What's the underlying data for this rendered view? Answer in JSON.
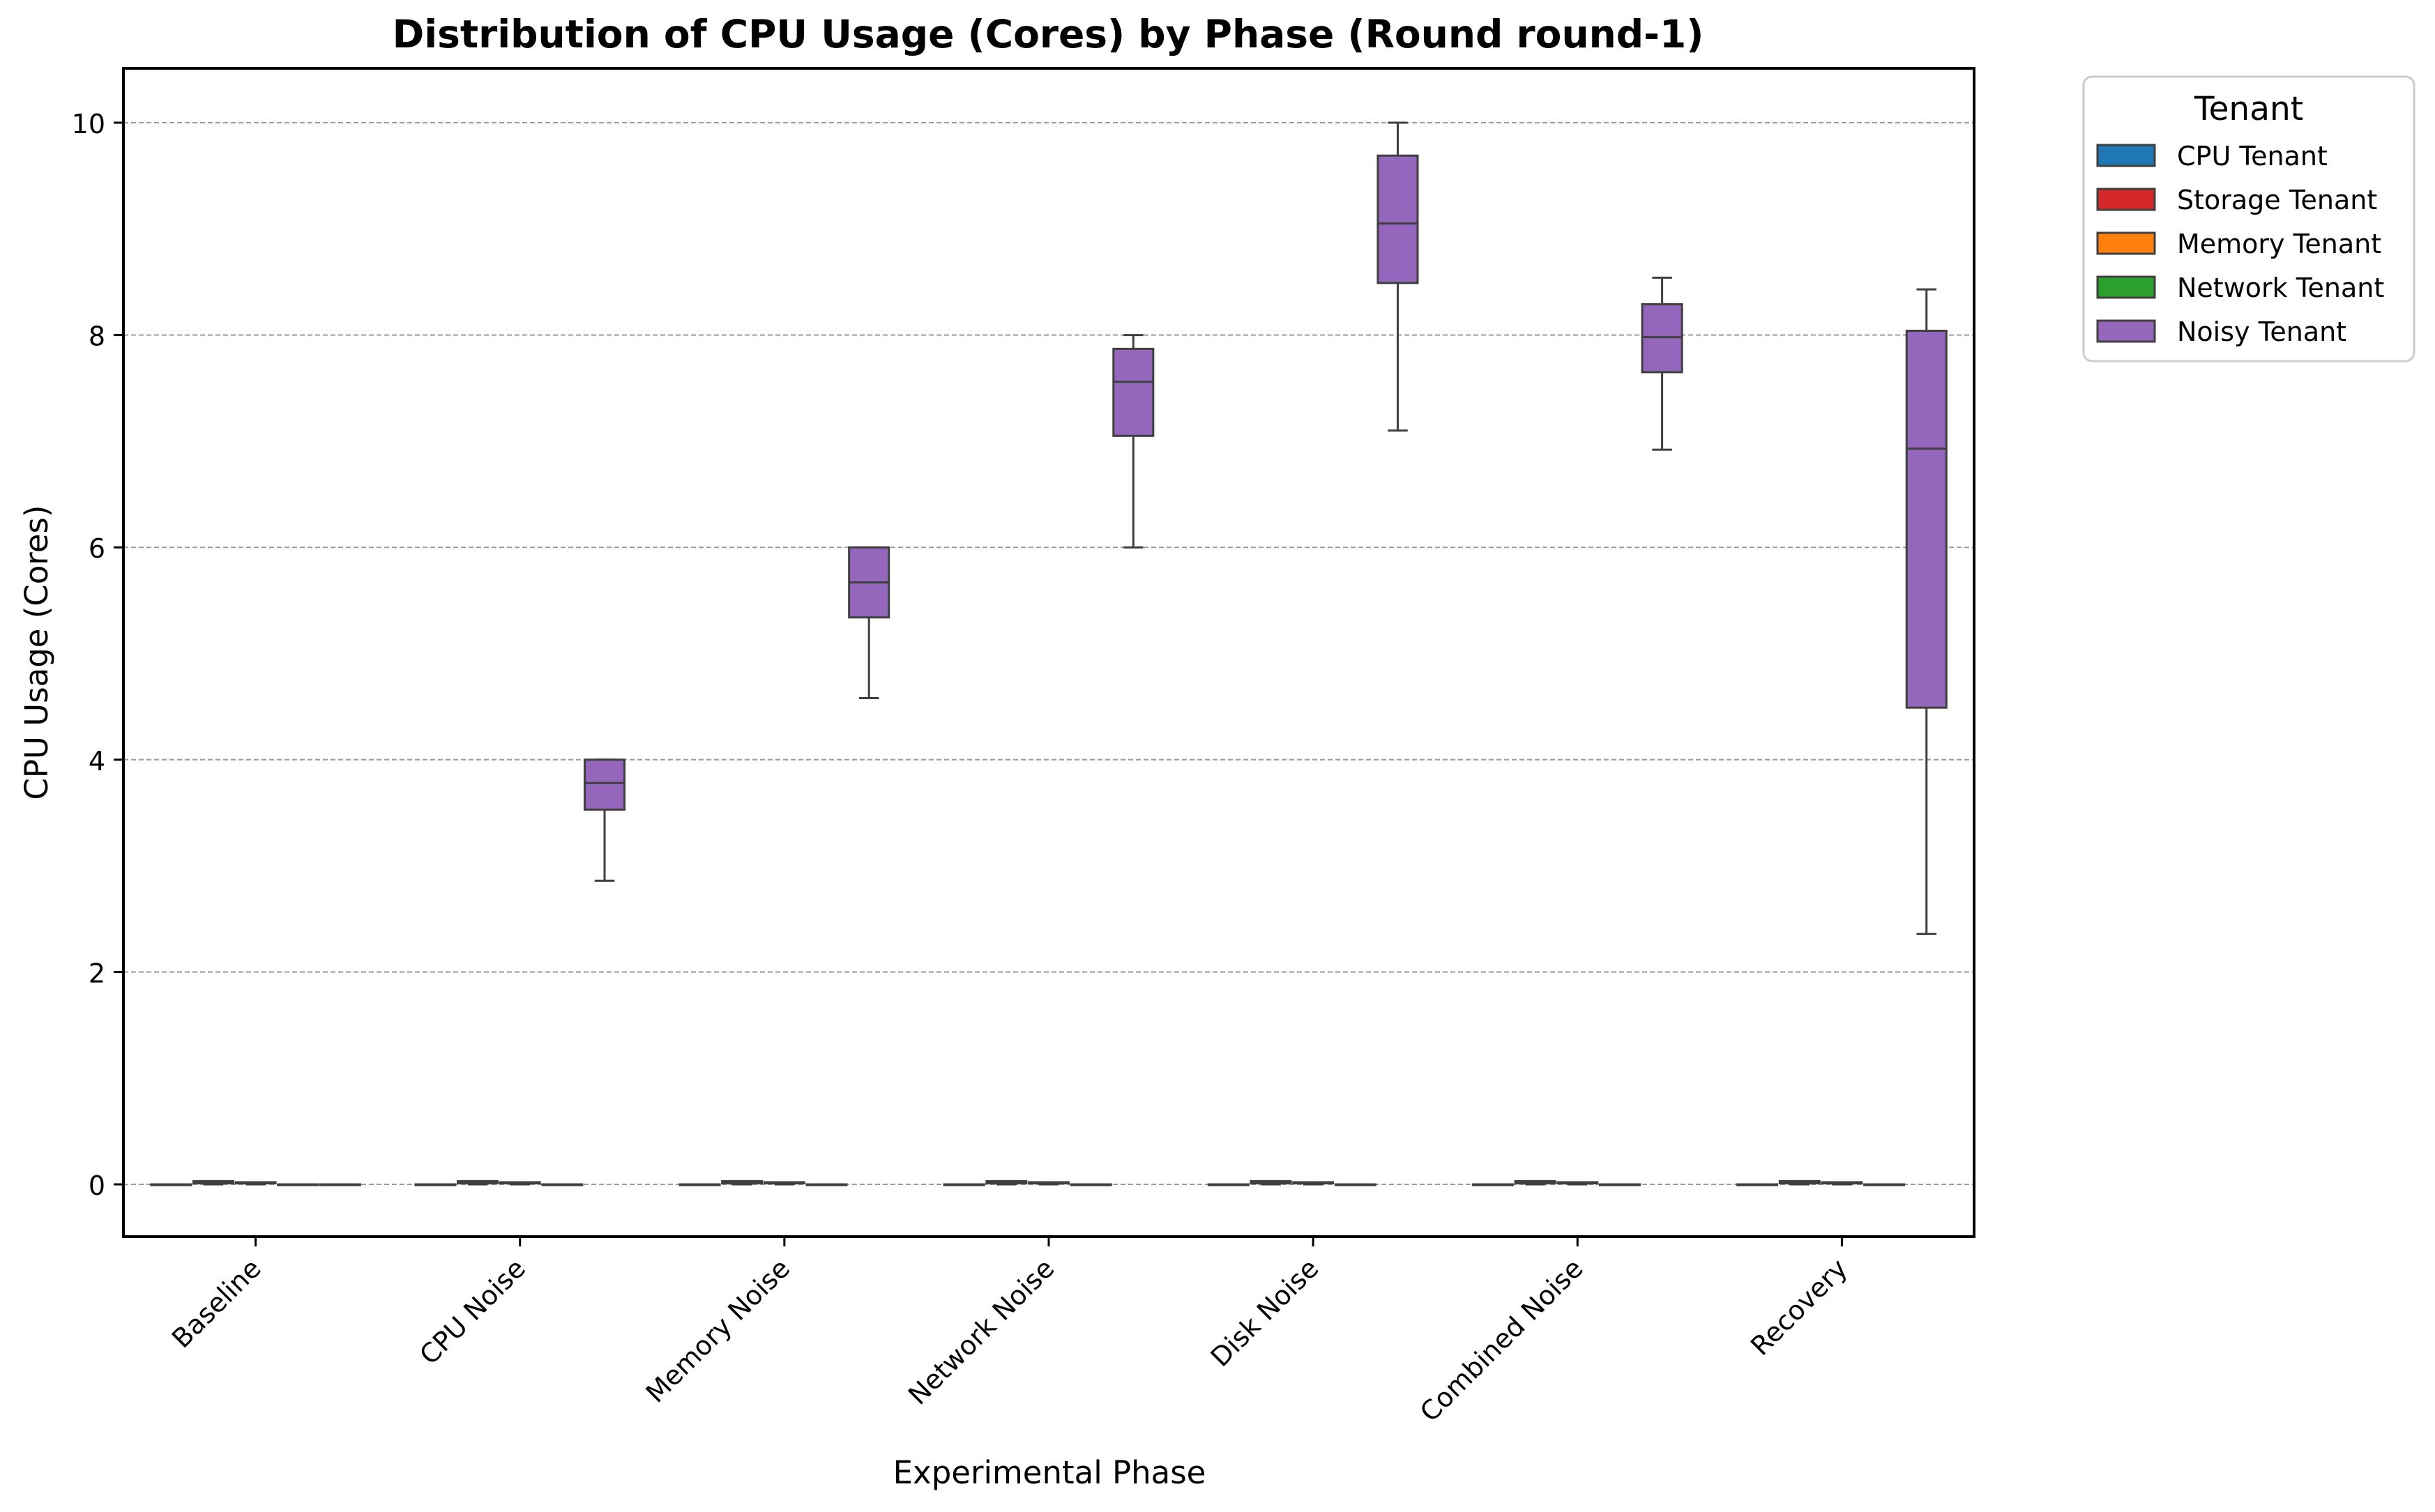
{
  "chart_data": {
    "type": "box",
    "title": "Distribution of CPU Usage (Cores) by Phase (Round round-1)",
    "xlabel": "Experimental Phase",
    "ylabel": "CPU Usage (Cores)",
    "ylim": [
      -0.5,
      10.5
    ],
    "yticks": [
      0,
      2,
      4,
      6,
      8,
      10
    ],
    "grid": "y",
    "categories": [
      "Baseline",
      "CPU Noise",
      "Memory Noise",
      "Network Noise",
      "Disk Noise",
      "Combined Noise",
      "Recovery"
    ],
    "legend": {
      "title": "Tenant",
      "placement": "outside-top-right"
    },
    "series": [
      {
        "name": "CPU Tenant",
        "color": "#1f77b4",
        "boxes": [
          {
            "min": 0,
            "q1": 0,
            "median": 0,
            "q3": 0,
            "max": 0
          },
          {
            "min": 0,
            "q1": 0,
            "median": 0,
            "q3": 0,
            "max": 0
          },
          {
            "min": 0,
            "q1": 0,
            "median": 0,
            "q3": 0,
            "max": 0
          },
          {
            "min": 0,
            "q1": 0,
            "median": 0,
            "q3": 0,
            "max": 0
          },
          {
            "min": 0,
            "q1": 0,
            "median": 0,
            "q3": 0,
            "max": 0
          },
          {
            "min": 0,
            "q1": 0,
            "median": 0,
            "q3": 0,
            "max": 0
          },
          {
            "min": 0,
            "q1": 0,
            "median": 0,
            "q3": 0,
            "max": 0
          }
        ]
      },
      {
        "name": "Storage Tenant",
        "color": "#d62728",
        "boxes": [
          {
            "min": 0.0,
            "q1": 0.01,
            "median": 0.02,
            "q3": 0.03,
            "max": 0.03
          },
          {
            "min": 0.0,
            "q1": 0.01,
            "median": 0.02,
            "q3": 0.03,
            "max": 0.03
          },
          {
            "min": 0.0,
            "q1": 0.01,
            "median": 0.02,
            "q3": 0.03,
            "max": 0.03
          },
          {
            "min": 0.0,
            "q1": 0.01,
            "median": 0.02,
            "q3": 0.03,
            "max": 0.03
          },
          {
            "min": 0.0,
            "q1": 0.01,
            "median": 0.02,
            "q3": 0.03,
            "max": 0.03
          },
          {
            "min": 0.0,
            "q1": 0.01,
            "median": 0.02,
            "q3": 0.03,
            "max": 0.03
          },
          {
            "min": 0.0,
            "q1": 0.01,
            "median": 0.02,
            "q3": 0.03,
            "max": 0.03
          }
        ]
      },
      {
        "name": "Memory Tenant",
        "color": "#ff7f0e",
        "boxes": [
          {
            "min": 0.0,
            "q1": 0.01,
            "median": 0.01,
            "q3": 0.02,
            "max": 0.02
          },
          {
            "min": 0.0,
            "q1": 0.01,
            "median": 0.01,
            "q3": 0.02,
            "max": 0.02
          },
          {
            "min": 0.0,
            "q1": 0.01,
            "median": 0.01,
            "q3": 0.02,
            "max": 0.02
          },
          {
            "min": 0.0,
            "q1": 0.01,
            "median": 0.01,
            "q3": 0.02,
            "max": 0.02
          },
          {
            "min": 0.0,
            "q1": 0.01,
            "median": 0.01,
            "q3": 0.02,
            "max": 0.02
          },
          {
            "min": 0.0,
            "q1": 0.01,
            "median": 0.01,
            "q3": 0.02,
            "max": 0.02
          },
          {
            "min": 0.0,
            "q1": 0.01,
            "median": 0.01,
            "q3": 0.02,
            "max": 0.02
          }
        ]
      },
      {
        "name": "Network Tenant",
        "color": "#2ca02c",
        "boxes": [
          {
            "min": 0,
            "q1": 0,
            "median": 0,
            "q3": 0,
            "max": 0
          },
          {
            "min": 0,
            "q1": 0,
            "median": 0,
            "q3": 0,
            "max": 0
          },
          {
            "min": 0,
            "q1": 0,
            "median": 0,
            "q3": 0,
            "max": 0
          },
          {
            "min": 0,
            "q1": 0,
            "median": 0,
            "q3": 0,
            "max": 0
          },
          {
            "min": 0,
            "q1": 0,
            "median": 0,
            "q3": 0,
            "max": 0
          },
          {
            "min": 0,
            "q1": 0,
            "median": 0,
            "q3": 0,
            "max": 0
          },
          {
            "min": 0,
            "q1": 0,
            "median": 0,
            "q3": 0,
            "max": 0
          }
        ]
      },
      {
        "name": "Noisy Tenant",
        "color": "#9467bd",
        "boxes": [
          {
            "min": 0,
            "q1": 0,
            "median": 0,
            "q3": 0,
            "max": 0
          },
          {
            "min": 2.86,
            "q1": 3.53,
            "median": 3.78,
            "q3": 4.0,
            "max": 4.0
          },
          {
            "min": 4.58,
            "q1": 5.34,
            "median": 5.67,
            "q3": 6.0,
            "max": 6.0
          },
          {
            "min": 6.0,
            "q1": 7.05,
            "median": 7.56,
            "q3": 7.87,
            "max": 8.0
          },
          {
            "min": 7.1,
            "q1": 8.49,
            "median": 9.05,
            "q3": 9.69,
            "max": 10.0
          },
          {
            "min": 6.92,
            "q1": 7.65,
            "median": 7.98,
            "q3": 8.29,
            "max": 8.54
          },
          {
            "min": 2.36,
            "q1": 4.49,
            "median": 6.93,
            "q3": 8.04,
            "max": 8.43
          }
        ]
      }
    ]
  }
}
